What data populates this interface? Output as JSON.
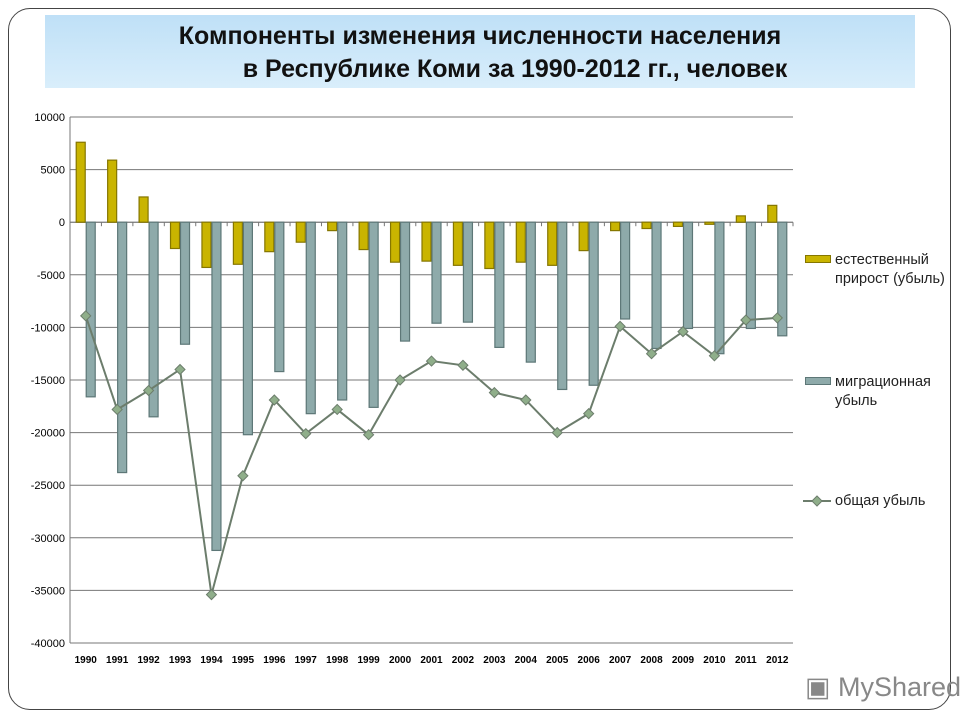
{
  "title": {
    "line1": "Компоненты изменения численности населения",
    "line2": "в Республике Коми за 1990-2012 гг., человек"
  },
  "watermark": "MyShared",
  "colors": {
    "natural": "#c9b400",
    "natural_border": "#857600",
    "migration": "#8eaaaa",
    "migration_border": "#5d7777",
    "total_line": "#6c7d6c",
    "total_marker": "#8fae8a",
    "title_bg": "#cfe8f9"
  },
  "chart_data": {
    "type": "bar",
    "title": "Компоненты изменения численности населения в Республике Коми за 1990-2012 гг., человек",
    "xlabel": "",
    "ylabel": "",
    "ylim": [
      -40000,
      10000
    ],
    "yticks": [
      "10000",
      "5000",
      "0",
      "-5000",
      "-10000",
      "-15000",
      "-20000",
      "-25000",
      "-30000",
      "-35000",
      "-40000"
    ],
    "grid": true,
    "legend": "right",
    "categories": [
      "1990",
      "1991",
      "1992",
      "1993",
      "1994",
      "1995",
      "1996",
      "1997",
      "1998",
      "1999",
      "2000",
      "2001",
      "2002",
      "2003",
      "2004",
      "2005",
      "2006",
      "2007",
      "2008",
      "2009",
      "2010",
      "2011",
      "2012"
    ],
    "series": [
      {
        "name": "естественный прирост (убыль)",
        "type": "bar",
        "values": [
          7600,
          5900,
          2400,
          -2500,
          -4300,
          -4000,
          -2800,
          -1900,
          -800,
          -2600,
          -3800,
          -3700,
          -4100,
          -4400,
          -3800,
          -4100,
          -2700,
          -800,
          -600,
          -400,
          -200,
          600,
          1600
        ]
      },
      {
        "name": "миграционная убыль",
        "type": "bar",
        "values": [
          -16600,
          -23800,
          -18500,
          -11600,
          -31200,
          -20200,
          -14200,
          -18200,
          -16900,
          -17600,
          -11300,
          -9600,
          -9500,
          -11900,
          -13300,
          -15900,
          -15500,
          -9200,
          -12000,
          -10100,
          -12500,
          -10100,
          -10800
        ]
      },
      {
        "name": "общая убыль",
        "type": "line",
        "values": [
          -8900,
          -17800,
          -16000,
          -14000,
          -35400,
          -24100,
          -16900,
          -20100,
          -17800,
          -20200,
          -15000,
          -13200,
          -13600,
          -16200,
          -16900,
          -20000,
          -18200,
          -9900,
          -12500,
          -10400,
          -12700,
          -9300,
          -9100
        ]
      }
    ]
  }
}
